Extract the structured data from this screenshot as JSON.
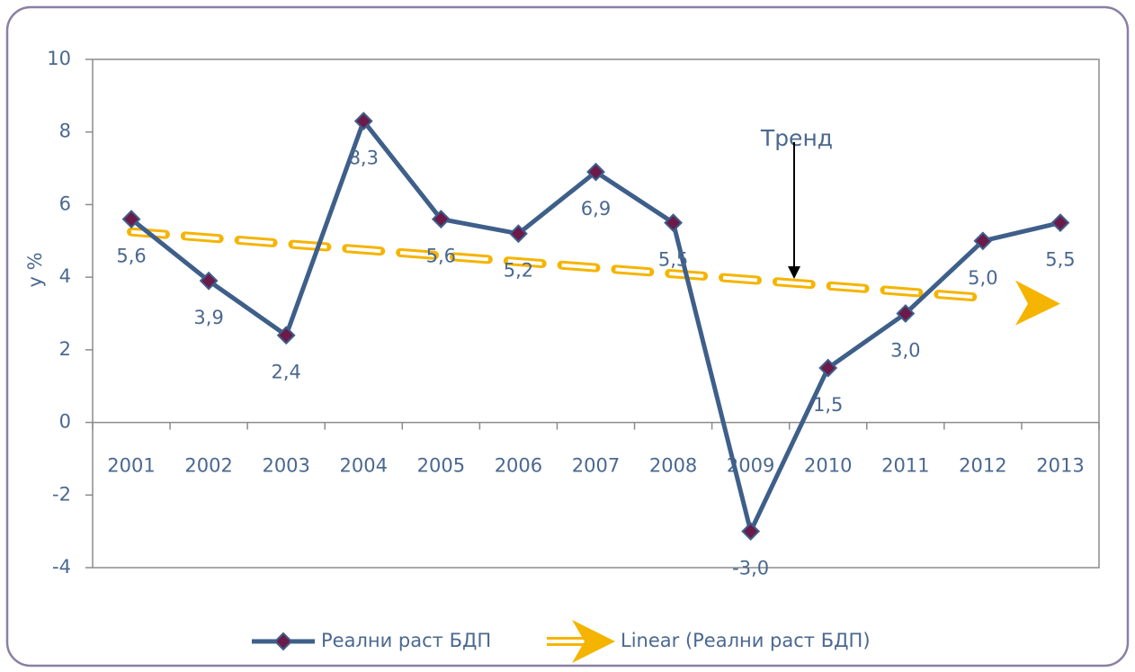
{
  "chart_data": {
    "type": "line",
    "ylabel": "у %",
    "categories": [
      "2001",
      "2002",
      "2003",
      "2004",
      "2005",
      "2006",
      "2007",
      "2008",
      "2009",
      "2010",
      "2011",
      "2012",
      "2013"
    ],
    "series": [
      {
        "name": "Реални раст БДП",
        "color": "#3e5f8a",
        "marker_color": "#6b1a4a",
        "values": [
          5.6,
          3.9,
          2.4,
          8.3,
          5.6,
          5.2,
          6.9,
          5.5,
          -3.0,
          1.5,
          3.0,
          5.0,
          5.5
        ],
        "value_labels": [
          "5,6",
          "3,9",
          "2,4",
          "8,3",
          "5,6",
          "5,2",
          "6,9",
          "5,5",
          "-3,0",
          "1,5",
          "3,0",
          "5,0",
          "5,5"
        ]
      }
    ],
    "trendline": {
      "name": "Linear (Реални раст БДП)",
      "color": "#f5b400",
      "start": 5.25,
      "end": 3.27
    },
    "annotation": "Тренд",
    "ylim": [
      -4,
      10
    ],
    "yticks": [
      10,
      8,
      6,
      4,
      2,
      0,
      -2,
      -4
    ],
    "grid": false
  }
}
